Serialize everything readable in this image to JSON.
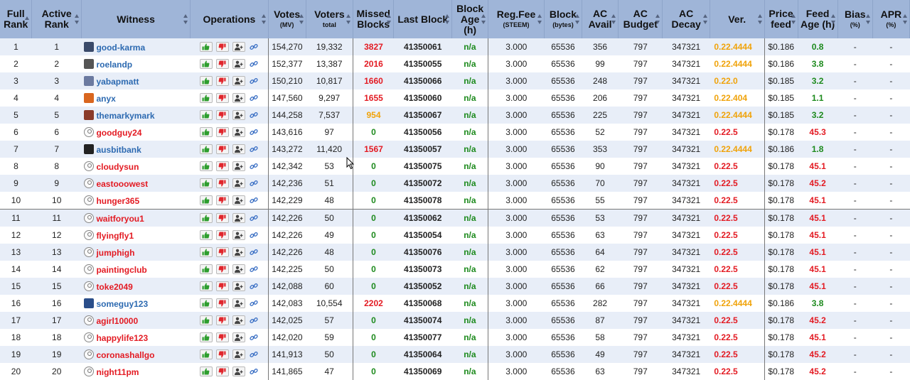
{
  "colors": {
    "header_bg": "#9fb5d8",
    "row_alt_bg": "#e8eef8",
    "active_witness": "#2d6ab1",
    "inactive_witness": "#e31b23",
    "missed_high": "#e31b23",
    "missed_medium": "#f0a30a",
    "missed_zero": "#1d8a1d",
    "version_current": "#f0a30a",
    "version_old": "#e31b23",
    "feed_fresh": "#1d8a1d",
    "feed_stale": "#e31b23"
  },
  "headers": {
    "full_rank": "Full Rank",
    "active_rank": "Active Rank",
    "witness": "Witness",
    "operations": "Operations",
    "votes": "Votes",
    "votes_sub": "(MV)",
    "voters": "Voters",
    "voters_sub": "total",
    "missed_blocks": "Missed Blocks",
    "last_block": "Last Block",
    "block_age": "Block Age (h)",
    "reg_fee": "Reg.Fee",
    "reg_fee_sub": "(STEEM)",
    "block": "Block",
    "block_sub": "(bytes)",
    "ac_avail": "AC Avail",
    "ac_budget": "AC Budget",
    "ac_decay": "AC Decay",
    "version": "Ver.",
    "price_feed": "Price feed",
    "feed_age": "Feed Age (h)",
    "bias": "Bias",
    "bias_sub": "(%)",
    "apr": "APR",
    "apr_sub": "(%)"
  },
  "icons": {
    "vote": "thumbs-up-icon",
    "unvote": "thumbs-down-icon",
    "proxy": "add-user-icon",
    "link": "link-icon",
    "cursor": "mouse-cursor-icon"
  },
  "rows": [
    {
      "full_rank": "1",
      "active_rank": "1",
      "avatar": "image",
      "witness": "good-karma",
      "active": true,
      "votes": "154,270",
      "voters": "19,332",
      "missed": "3827",
      "missed_level": "high",
      "last_block": "41350061",
      "block_age": "n/a",
      "reg_fee": "3.000",
      "block_size": "65536",
      "ac_avail": "356",
      "ac_budget": "797",
      "ac_decay": "347321",
      "version": "0.22.4444",
      "version_current": true,
      "price_feed": "$0.186",
      "feed_age": "0.8",
      "feed_fresh": true,
      "bias": "-",
      "apr": "-"
    },
    {
      "full_rank": "2",
      "active_rank": "2",
      "avatar": "image",
      "witness": "roelandp",
      "active": true,
      "votes": "152,377",
      "voters": "13,387",
      "missed": "2016",
      "missed_level": "high",
      "last_block": "41350055",
      "block_age": "n/a",
      "reg_fee": "3.000",
      "block_size": "65536",
      "ac_avail": "99",
      "ac_budget": "797",
      "ac_decay": "347321",
      "version": "0.22.4444",
      "version_current": true,
      "price_feed": "$0.186",
      "feed_age": "3.8",
      "feed_fresh": true,
      "bias": "-",
      "apr": "-"
    },
    {
      "full_rank": "3",
      "active_rank": "3",
      "avatar": "image",
      "witness": "yabapmatt",
      "active": true,
      "votes": "150,210",
      "voters": "10,817",
      "missed": "1660",
      "missed_level": "high",
      "last_block": "41350066",
      "block_age": "n/a",
      "reg_fee": "3.000",
      "block_size": "65536",
      "ac_avail": "248",
      "ac_budget": "797",
      "ac_decay": "347321",
      "version": "0.22.0",
      "version_current": true,
      "price_feed": "$0.185",
      "feed_age": "3.2",
      "feed_fresh": true,
      "bias": "-",
      "apr": "-"
    },
    {
      "full_rank": "4",
      "active_rank": "4",
      "avatar": "image",
      "witness": "anyx",
      "active": true,
      "votes": "147,560",
      "voters": "9,297",
      "missed": "1655",
      "missed_level": "high",
      "last_block": "41350060",
      "block_age": "n/a",
      "reg_fee": "3.000",
      "block_size": "65536",
      "ac_avail": "206",
      "ac_budget": "797",
      "ac_decay": "347321",
      "version": "0.22.404",
      "version_current": true,
      "price_feed": "$0.185",
      "feed_age": "1.1",
      "feed_fresh": true,
      "bias": "-",
      "apr": "-"
    },
    {
      "full_rank": "5",
      "active_rank": "5",
      "avatar": "image",
      "witness": "themarkymark",
      "active": true,
      "votes": "144,258",
      "voters": "7,537",
      "missed": "954",
      "missed_level": "medium",
      "last_block": "41350067",
      "block_age": "n/a",
      "reg_fee": "3.000",
      "block_size": "65536",
      "ac_avail": "225",
      "ac_budget": "797",
      "ac_decay": "347321",
      "version": "0.22.4444",
      "version_current": true,
      "price_feed": "$0.185",
      "feed_age": "3.2",
      "feed_fresh": true,
      "bias": "-",
      "apr": "-"
    },
    {
      "full_rank": "6",
      "active_rank": "6",
      "avatar": "default",
      "witness": "goodguy24",
      "active": false,
      "votes": "143,616",
      "voters": "97",
      "missed": "0",
      "missed_level": "zero",
      "last_block": "41350056",
      "block_age": "n/a",
      "reg_fee": "3.000",
      "block_size": "65536",
      "ac_avail": "52",
      "ac_budget": "797",
      "ac_decay": "347321",
      "version": "0.22.5",
      "version_current": false,
      "price_feed": "$0.178",
      "feed_age": "45.3",
      "feed_fresh": false,
      "bias": "-",
      "apr": "-"
    },
    {
      "full_rank": "7",
      "active_rank": "7",
      "avatar": "image",
      "witness": "ausbitbank",
      "active": true,
      "votes": "143,272",
      "voters": "11,420",
      "missed": "1567",
      "missed_level": "high",
      "last_block": "41350057",
      "block_age": "n/a",
      "reg_fee": "3.000",
      "block_size": "65536",
      "ac_avail": "353",
      "ac_budget": "797",
      "ac_decay": "347321",
      "version": "0.22.4444",
      "version_current": true,
      "price_feed": "$0.186",
      "feed_age": "1.8",
      "feed_fresh": true,
      "bias": "-",
      "apr": "-"
    },
    {
      "full_rank": "8",
      "active_rank": "8",
      "avatar": "default",
      "witness": "cloudysun",
      "active": false,
      "votes": "142,342",
      "voters": "53",
      "missed": "0",
      "missed_level": "zero",
      "last_block": "41350075",
      "block_age": "n/a",
      "reg_fee": "3.000",
      "block_size": "65536",
      "ac_avail": "90",
      "ac_budget": "797",
      "ac_decay": "347321",
      "version": "0.22.5",
      "version_current": false,
      "price_feed": "$0.178",
      "feed_age": "45.1",
      "feed_fresh": false,
      "bias": "-",
      "apr": "-"
    },
    {
      "full_rank": "9",
      "active_rank": "9",
      "avatar": "default",
      "witness": "eastooowest",
      "active": false,
      "votes": "142,236",
      "voters": "51",
      "missed": "0",
      "missed_level": "zero",
      "last_block": "41350072",
      "block_age": "n/a",
      "reg_fee": "3.000",
      "block_size": "65536",
      "ac_avail": "70",
      "ac_budget": "797",
      "ac_decay": "347321",
      "version": "0.22.5",
      "version_current": false,
      "price_feed": "$0.178",
      "feed_age": "45.2",
      "feed_fresh": false,
      "bias": "-",
      "apr": "-"
    },
    {
      "full_rank": "10",
      "active_rank": "10",
      "avatar": "default",
      "witness": "hunger365",
      "active": false,
      "votes": "142,229",
      "voters": "48",
      "missed": "0",
      "missed_level": "zero",
      "last_block": "41350078",
      "block_age": "n/a",
      "reg_fee": "3.000",
      "block_size": "65536",
      "ac_avail": "55",
      "ac_budget": "797",
      "ac_decay": "347321",
      "version": "0.22.5",
      "version_current": false,
      "price_feed": "$0.178",
      "feed_age": "45.1",
      "feed_fresh": false,
      "bias": "-",
      "apr": "-"
    },
    {
      "full_rank": "11",
      "active_rank": "11",
      "avatar": "default",
      "witness": "waitforyou1",
      "active": false,
      "votes": "142,226",
      "voters": "50",
      "missed": "0",
      "missed_level": "zero",
      "last_block": "41350062",
      "block_age": "n/a",
      "reg_fee": "3.000",
      "block_size": "65536",
      "ac_avail": "53",
      "ac_budget": "797",
      "ac_decay": "347321",
      "version": "0.22.5",
      "version_current": false,
      "price_feed": "$0.178",
      "feed_age": "45.1",
      "feed_fresh": false,
      "bias": "-",
      "apr": "-"
    },
    {
      "full_rank": "12",
      "active_rank": "12",
      "avatar": "default",
      "witness": "flyingfly1",
      "active": false,
      "votes": "142,226",
      "voters": "49",
      "missed": "0",
      "missed_level": "zero",
      "last_block": "41350054",
      "block_age": "n/a",
      "reg_fee": "3.000",
      "block_size": "65536",
      "ac_avail": "63",
      "ac_budget": "797",
      "ac_decay": "347321",
      "version": "0.22.5",
      "version_current": false,
      "price_feed": "$0.178",
      "feed_age": "45.1",
      "feed_fresh": false,
      "bias": "-",
      "apr": "-"
    },
    {
      "full_rank": "13",
      "active_rank": "13",
      "avatar": "default",
      "witness": "jumphigh",
      "active": false,
      "votes": "142,226",
      "voters": "48",
      "missed": "0",
      "missed_level": "zero",
      "last_block": "41350076",
      "block_age": "n/a",
      "reg_fee": "3.000",
      "block_size": "65536",
      "ac_avail": "64",
      "ac_budget": "797",
      "ac_decay": "347321",
      "version": "0.22.5",
      "version_current": false,
      "price_feed": "$0.178",
      "feed_age": "45.1",
      "feed_fresh": false,
      "bias": "-",
      "apr": "-"
    },
    {
      "full_rank": "14",
      "active_rank": "14",
      "avatar": "default",
      "witness": "paintingclub",
      "active": false,
      "votes": "142,225",
      "voters": "50",
      "missed": "0",
      "missed_level": "zero",
      "last_block": "41350073",
      "block_age": "n/a",
      "reg_fee": "3.000",
      "block_size": "65536",
      "ac_avail": "62",
      "ac_budget": "797",
      "ac_decay": "347321",
      "version": "0.22.5",
      "version_current": false,
      "price_feed": "$0.178",
      "feed_age": "45.1",
      "feed_fresh": false,
      "bias": "-",
      "apr": "-"
    },
    {
      "full_rank": "15",
      "active_rank": "15",
      "avatar": "default",
      "witness": "toke2049",
      "active": false,
      "votes": "142,088",
      "voters": "60",
      "missed": "0",
      "missed_level": "zero",
      "last_block": "41350052",
      "block_age": "n/a",
      "reg_fee": "3.000",
      "block_size": "65536",
      "ac_avail": "66",
      "ac_budget": "797",
      "ac_decay": "347321",
      "version": "0.22.5",
      "version_current": false,
      "price_feed": "$0.178",
      "feed_age": "45.1",
      "feed_fresh": false,
      "bias": "-",
      "apr": "-"
    },
    {
      "full_rank": "16",
      "active_rank": "16",
      "avatar": "image",
      "witness": "someguy123",
      "active": true,
      "votes": "142,083",
      "voters": "10,554",
      "missed": "2202",
      "missed_level": "high",
      "last_block": "41350068",
      "block_age": "n/a",
      "reg_fee": "3.000",
      "block_size": "65536",
      "ac_avail": "282",
      "ac_budget": "797",
      "ac_decay": "347321",
      "version": "0.22.4444",
      "version_current": true,
      "price_feed": "$0.186",
      "feed_age": "3.8",
      "feed_fresh": true,
      "bias": "-",
      "apr": "-"
    },
    {
      "full_rank": "17",
      "active_rank": "17",
      "avatar": "default",
      "witness": "agirl10000",
      "active": false,
      "votes": "142,025",
      "voters": "57",
      "missed": "0",
      "missed_level": "zero",
      "last_block": "41350074",
      "block_age": "n/a",
      "reg_fee": "3.000",
      "block_size": "65536",
      "ac_avail": "87",
      "ac_budget": "797",
      "ac_decay": "347321",
      "version": "0.22.5",
      "version_current": false,
      "price_feed": "$0.178",
      "feed_age": "45.2",
      "feed_fresh": false,
      "bias": "-",
      "apr": "-"
    },
    {
      "full_rank": "18",
      "active_rank": "18",
      "avatar": "default",
      "witness": "happylife123",
      "active": false,
      "votes": "142,020",
      "voters": "59",
      "missed": "0",
      "missed_level": "zero",
      "last_block": "41350077",
      "block_age": "n/a",
      "reg_fee": "3.000",
      "block_size": "65536",
      "ac_avail": "58",
      "ac_budget": "797",
      "ac_decay": "347321",
      "version": "0.22.5",
      "version_current": false,
      "price_feed": "$0.178",
      "feed_age": "45.1",
      "feed_fresh": false,
      "bias": "-",
      "apr": "-"
    },
    {
      "full_rank": "19",
      "active_rank": "19",
      "avatar": "default",
      "witness": "coronashallgo",
      "active": false,
      "votes": "141,913",
      "voters": "50",
      "missed": "0",
      "missed_level": "zero",
      "last_block": "41350064",
      "block_age": "n/a",
      "reg_fee": "3.000",
      "block_size": "65536",
      "ac_avail": "49",
      "ac_budget": "797",
      "ac_decay": "347321",
      "version": "0.22.5",
      "version_current": false,
      "price_feed": "$0.178",
      "feed_age": "45.2",
      "feed_fresh": false,
      "bias": "-",
      "apr": "-"
    },
    {
      "full_rank": "20",
      "active_rank": "20",
      "avatar": "default",
      "witness": "night11pm",
      "active": false,
      "votes": "141,865",
      "voters": "47",
      "missed": "0",
      "missed_level": "zero",
      "last_block": "41350069",
      "block_age": "n/a",
      "reg_fee": "3.000",
      "block_size": "65536",
      "ac_avail": "63",
      "ac_budget": "797",
      "ac_decay": "347321",
      "version": "0.22.5",
      "version_current": false,
      "price_feed": "$0.178",
      "feed_age": "45.2",
      "feed_fresh": false,
      "bias": "-",
      "apr": "-"
    }
  ]
}
